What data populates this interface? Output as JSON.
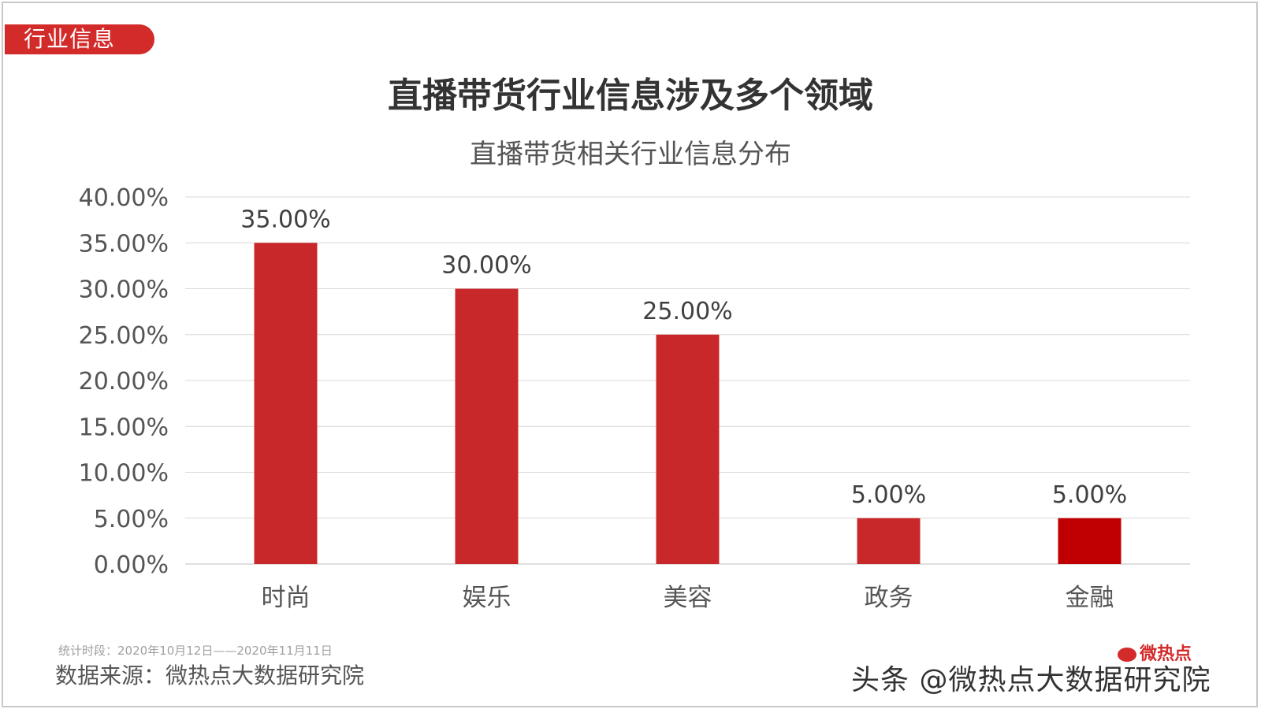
{
  "tag": "行业信息",
  "title": "直播带货行业信息涉及多个领域",
  "chart_data": {
    "type": "bar",
    "title": "直播带货相关行业信息分布",
    "categories": [
      "时尚",
      "娱乐",
      "美容",
      "政务",
      "金融"
    ],
    "values": [
      35.0,
      30.0,
      25.0,
      5.0,
      5.0
    ],
    "data_labels": [
      "35.00%",
      "30.00%",
      "25.00%",
      "5.00%",
      "5.00%"
    ],
    "ylim": [
      0,
      40
    ],
    "yticks": [
      "0.00%",
      "5.00%",
      "10.00%",
      "15.00%",
      "20.00%",
      "25.00%",
      "30.00%",
      "35.00%",
      "40.00%"
    ],
    "grid": true,
    "bar_color": "#c8282a",
    "highlight_color": "#c00000",
    "highlight_index": 4
  },
  "footer": {
    "period_note": "统计时段：2020年10月12日——2020年11月11日",
    "source": "数据来源：微热点大数据研究院",
    "logo_text": "微热点",
    "watermark": "头条 @微热点大数据研究院"
  }
}
